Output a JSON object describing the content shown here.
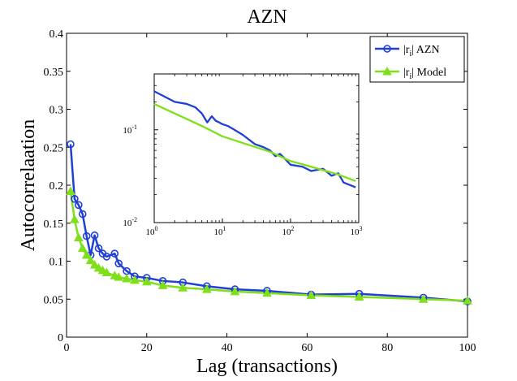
{
  "chart_data": {
    "type": "line",
    "title": "AZN",
    "xlabel": "Lag (transactions)",
    "ylabel": "Autocorrelaation",
    "xlim": [
      0,
      100
    ],
    "ylim": [
      0,
      0.4
    ],
    "xticks": [
      0,
      20,
      40,
      60,
      80,
      100
    ],
    "yticks": [
      0,
      0.05,
      0.1,
      0.15,
      0.2,
      0.25,
      0.3,
      0.35,
      0.4
    ],
    "xtick_labels": [
      "0",
      "20",
      "40",
      "60",
      "80",
      "100"
    ],
    "ytick_labels": [
      "0",
      "0.05",
      "0.1",
      "0.15",
      "0.2",
      "0.25",
      "0.3",
      "0.35",
      "0.4"
    ],
    "legend_location": "top-right",
    "series": [
      {
        "name": "|r_i| AZN",
        "legend_main": "|r",
        "legend_sub": "i",
        "legend_suffix": "| AZN",
        "color": "#1f3fd6",
        "marker": "circle",
        "x": [
          1,
          2,
          3,
          4,
          5,
          6,
          7,
          8,
          9,
          10,
          12,
          13,
          15,
          17,
          20,
          24,
          29,
          35,
          42,
          50,
          61,
          73,
          89,
          100
        ],
        "values": [
          0.254,
          0.182,
          0.174,
          0.162,
          0.133,
          0.108,
          0.134,
          0.117,
          0.11,
          0.106,
          0.11,
          0.097,
          0.087,
          0.08,
          0.078,
          0.074,
          0.072,
          0.067,
          0.063,
          0.061,
          0.056,
          0.057,
          0.052,
          0.047
        ]
      },
      {
        "name": "|r_i| Model",
        "legend_main": "|r",
        "legend_sub": "i",
        "legend_suffix": "| Model",
        "color": "#7fe01a",
        "marker": "triangle",
        "x": [
          1,
          2,
          3,
          4,
          5,
          6,
          7,
          8,
          9,
          10,
          12,
          13,
          15,
          17,
          20,
          24,
          29,
          35,
          42,
          50,
          61,
          73,
          89,
          100
        ],
        "values": [
          0.192,
          0.155,
          0.131,
          0.117,
          0.108,
          0.101,
          0.095,
          0.091,
          0.088,
          0.085,
          0.081,
          0.079,
          0.077,
          0.075,
          0.073,
          0.068,
          0.065,
          0.063,
          0.06,
          0.058,
          0.055,
          0.053,
          0.05,
          0.048
        ]
      }
    ],
    "inset": {
      "type": "line",
      "xscale": "log",
      "yscale": "log",
      "xlim": [
        1,
        1000
      ],
      "ylim": [
        0.01,
        0.4
      ],
      "xtick_labels": [
        {
          "base": "10",
          "exp": "0",
          "value": 1
        },
        {
          "base": "10",
          "exp": "1",
          "value": 10
        },
        {
          "base": "10",
          "exp": "2",
          "value": 100
        },
        {
          "base": "10",
          "exp": "3",
          "value": 1000
        }
      ],
      "ytick_labels": [
        {
          "base": "10",
          "exp": "-2",
          "value": 0.01
        },
        {
          "base": "10",
          "exp": "-1",
          "value": 0.1
        }
      ],
      "series": [
        {
          "name": "|r_i| AZN",
          "color": "#1f3fd6",
          "x": [
            1,
            2,
            3,
            4,
            5,
            6,
            7,
            8,
            9,
            10,
            12,
            15,
            20,
            30,
            40,
            50,
            60,
            70,
            80,
            100,
            150,
            200,
            300,
            400,
            500,
            600,
            900
          ],
          "values": [
            0.26,
            0.2,
            0.19,
            0.175,
            0.15,
            0.12,
            0.14,
            0.125,
            0.12,
            0.115,
            0.11,
            0.1,
            0.088,
            0.07,
            0.065,
            0.06,
            0.052,
            0.055,
            0.05,
            0.042,
            0.04,
            0.036,
            0.038,
            0.032,
            0.034,
            0.027,
            0.024
          ]
        },
        {
          "name": "|r_i| Model",
          "color": "#7fe01a",
          "x": [
            1,
            2,
            5,
            10,
            20,
            50,
            100,
            200,
            500,
            900
          ],
          "values": [
            0.19,
            0.15,
            0.11,
            0.085,
            0.072,
            0.058,
            0.046,
            0.04,
            0.033,
            0.028
          ]
        }
      ]
    }
  }
}
